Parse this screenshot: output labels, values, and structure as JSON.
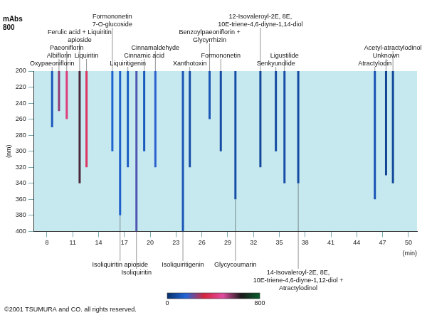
{
  "chart_data": {
    "type": "chromatogram",
    "x_label": "(min)",
    "xlim": [
      6.5,
      51
    ],
    "xticks": [
      8,
      11,
      14,
      17,
      20,
      23,
      26,
      29,
      32,
      35,
      38,
      41,
      44,
      47,
      50
    ],
    "y_label": "(nm)",
    "ylim": [
      200,
      400
    ],
    "yticks": [
      200,
      220,
      240,
      260,
      280,
      300,
      320,
      340,
      360,
      380,
      400
    ],
    "z_label": "mAbs",
    "zticks": [
      800
    ],
    "grid": false,
    "colorbar": {
      "range": [
        0,
        800
      ],
      "ticks": [
        0,
        800
      ],
      "colors": [
        "#08306b",
        "#2166d8",
        "#d7263d",
        "#e04ca0",
        "#1a1a1a",
        "#0b5d2e"
      ]
    },
    "peaks_upper": [
      {
        "label": "Oxypaeoniflorin",
        "time": 8.6,
        "absorbance": 120,
        "nm": [
          200,
          270
        ]
      },
      {
        "label": "Albiflorin",
        "time": 9.4,
        "absorbance": 260,
        "nm": [
          200,
          250
        ]
      },
      {
        "label": "Paeoniflorin",
        "time": 10.3,
        "absorbance": 420,
        "nm": [
          200,
          260
        ]
      },
      {
        "label": "Ferulic acid + Liquiritin apioside",
        "time": 11.8,
        "absorbance": 600,
        "nm": [
          200,
          340
        ]
      },
      {
        "label": "Liquiritin",
        "time": 12.6,
        "absorbance": 380,
        "nm": [
          200,
          320
        ]
      },
      {
        "label": "Formononetin 7-O-glucoside",
        "time": 15.6,
        "absorbance": 150,
        "nm": [
          200,
          300
        ]
      },
      {
        "label": "Liquiritigenin",
        "time": 17.4,
        "absorbance": 130,
        "nm": [
          200,
          320
        ]
      },
      {
        "label": "Cinnamic acid",
        "time": 19.3,
        "absorbance": 120,
        "nm": [
          200,
          300
        ]
      },
      {
        "label": "Cinnamaldehyde",
        "time": 20.6,
        "absorbance": 170,
        "nm": [
          200,
          320
        ]
      },
      {
        "label": "Xanthotoxin",
        "time": 24.6,
        "absorbance": 90,
        "nm": [
          200,
          320
        ]
      },
      {
        "label": "Benzoylpaeoniflorin + Glycyrrhizin",
        "time": 26.9,
        "absorbance": 110,
        "nm": [
          200,
          260
        ]
      },
      {
        "label": "Formononetin",
        "time": 28.2,
        "absorbance": 80,
        "nm": [
          200,
          300
        ]
      },
      {
        "label": "12-Isovaleroyl-2E, 8E, 10E-triene-4,6-diyne-1,14-diol",
        "time": 32.8,
        "absorbance": 70,
        "nm": [
          200,
          320
        ]
      },
      {
        "label": "Senkyunolide",
        "time": 34.6,
        "absorbance": 80,
        "nm": [
          200,
          300
        ]
      },
      {
        "label": "Ligustilide",
        "time": 35.6,
        "absorbance": 90,
        "nm": [
          200,
          340
        ]
      },
      {
        "label": "Atractylodin",
        "time": 46.1,
        "absorbance": 110,
        "nm": [
          200,
          360
        ]
      },
      {
        "label": "Unknown",
        "time": 47.4,
        "absorbance": 60,
        "nm": [
          200,
          330
        ]
      },
      {
        "label": "Acetyl-atractylodinol",
        "time": 48.2,
        "absorbance": 70,
        "nm": [
          200,
          340
        ]
      }
    ],
    "peaks_lower": [
      {
        "label": "Isoliquiritin apioside",
        "time": 16.5,
        "absorbance": 140,
        "nm": [
          200,
          380
        ]
      },
      {
        "label": "Isoliquiritin",
        "time": 18.4,
        "absorbance": 200,
        "nm": [
          200,
          400
        ]
      },
      {
        "label": "Isoliquiritigenin",
        "time": 23.8,
        "absorbance": 110,
        "nm": [
          200,
          400
        ]
      },
      {
        "label": "Glycycoumarin",
        "time": 29.9,
        "absorbance": 90,
        "nm": [
          200,
          360
        ]
      },
      {
        "label": "14-Isovaleroyl-2E, 8E, 10E-triene-4,6-diyne-1,12-diol + Atractylodinol",
        "time": 37.2,
        "absorbance": 80,
        "nm": [
          200,
          340
        ]
      }
    ],
    "copyright": "©2001 TSUMURA and CO. all rights reserved."
  }
}
